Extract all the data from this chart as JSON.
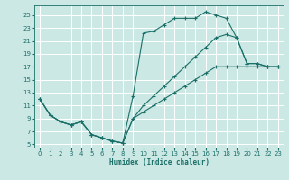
{
  "xlabel": "Humidex (Indice chaleur)",
  "bg_color": "#cce8e5",
  "grid_color": "#ffffff",
  "line_color": "#1a7068",
  "xlim": [
    -0.5,
    23.5
  ],
  "ylim": [
    4.5,
    26.5
  ],
  "xticks": [
    0,
    1,
    2,
    3,
    4,
    5,
    6,
    7,
    8,
    9,
    10,
    11,
    12,
    13,
    14,
    15,
    16,
    17,
    18,
    19,
    20,
    21,
    22,
    23
  ],
  "yticks": [
    5,
    7,
    9,
    11,
    13,
    15,
    17,
    19,
    21,
    23,
    25
  ],
  "line1_x": [
    0,
    1,
    2,
    3,
    4,
    5,
    6,
    7,
    8,
    9,
    10,
    11,
    12,
    13,
    14,
    15,
    16,
    17,
    18,
    19,
    20,
    21,
    22,
    23
  ],
  "line1_y": [
    12,
    9.5,
    8.5,
    8.0,
    8.5,
    6.5,
    6.0,
    5.5,
    5.2,
    12.5,
    22.2,
    22.5,
    23.5,
    24.5,
    24.5,
    24.5,
    25.5,
    25.0,
    24.5,
    21.5,
    17.5,
    17.5,
    17.0,
    17.0
  ],
  "line2_x": [
    0,
    1,
    2,
    3,
    4,
    5,
    6,
    7,
    8,
    9,
    10,
    11,
    12,
    13,
    14,
    15,
    16,
    17,
    18,
    19,
    20,
    21,
    22,
    23
  ],
  "line2_y": [
    12,
    9.5,
    8.5,
    8.0,
    8.5,
    6.5,
    6.0,
    5.5,
    5.2,
    9.0,
    10.0,
    11.0,
    12.0,
    13.0,
    14.0,
    15.0,
    16.0,
    17.0,
    17.0,
    17.0,
    17.0,
    17.0,
    17.0,
    17.0
  ],
  "line3_x": [
    0,
    1,
    2,
    3,
    4,
    5,
    6,
    7,
    8,
    9,
    10,
    11,
    12,
    13,
    14,
    15,
    16,
    17,
    18,
    19,
    20,
    21,
    22,
    23
  ],
  "line3_y": [
    12,
    9.5,
    8.5,
    8.0,
    8.5,
    6.5,
    6.0,
    5.5,
    5.2,
    9.0,
    11.0,
    12.5,
    14.0,
    15.5,
    17.0,
    18.5,
    20.0,
    21.5,
    22.0,
    21.5,
    17.5,
    17.5,
    17.0,
    17.0
  ]
}
